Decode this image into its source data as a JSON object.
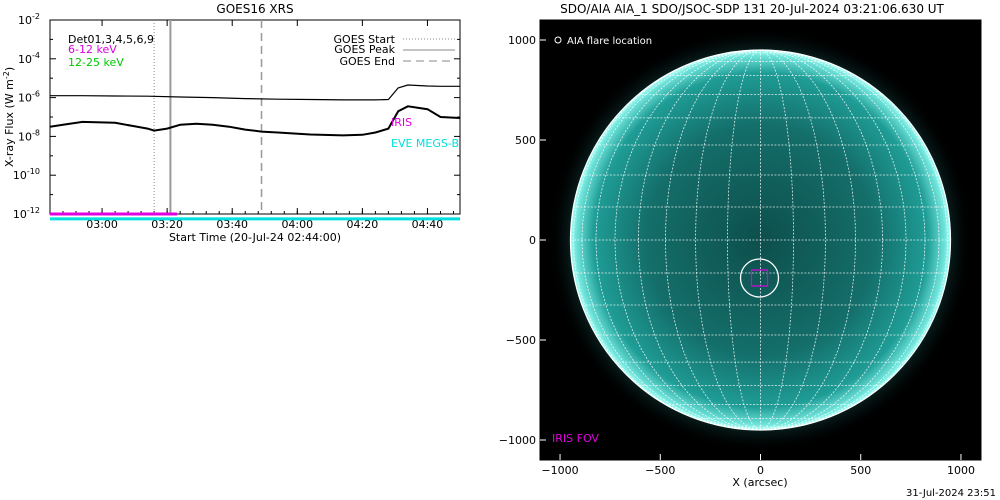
{
  "chart_data": [
    {
      "type": "line",
      "title": "GOES16 XRS",
      "xlabel": "Start Time (20-Jul-24 02:44:00)",
      "ylabel": "X-ray Flux (W m",
      "ylabel_sup": "-2",
      "ylabel_close": ")",
      "y_scale": "log",
      "ylim_exp": [
        -12,
        -2
      ],
      "y_ticks": [
        {
          "base": "10",
          "exp": "-12",
          "value_exp": -12
        },
        {
          "base": "10",
          "exp": "-10",
          "value_exp": -10
        },
        {
          "base": "10",
          "exp": "-8",
          "value_exp": -8
        },
        {
          "base": "10",
          "exp": "-6",
          "value_exp": -6
        },
        {
          "base": "10",
          "exp": "-4",
          "value_exp": -4
        },
        {
          "base": "10",
          "exp": "-2",
          "value_exp": -2
        }
      ],
      "xlim_min": [
        0,
        126
      ],
      "x_ticks": [
        {
          "label": "03:00",
          "min": 16
        },
        {
          "label": "03:20",
          "min": 36
        },
        {
          "label": "03:40",
          "min": 56
        },
        {
          "label": "04:00",
          "min": 76
        },
        {
          "label": "04:20",
          "min": 96
        },
        {
          "label": "04:40",
          "min": 116
        }
      ],
      "legend_left": [
        {
          "text": "Det01,3,4,5,6,9",
          "color": "#000000"
        },
        {
          "text": "6-12 keV",
          "color": "#e000e0"
        },
        {
          "text": "12-25 keV",
          "color": "#00c800"
        }
      ],
      "legend_right": [
        {
          "text": "GOES Start",
          "style": "dotted",
          "color": "#888888"
        },
        {
          "text": "GOES Peak",
          "style": "solid",
          "color": "#888888"
        },
        {
          "text": "GOES End",
          "style": "dashed",
          "color": "#888888"
        }
      ],
      "events": [
        {
          "name": "GOES Start",
          "min": 32,
          "style": "dotted"
        },
        {
          "name": "GOES Peak",
          "min": 37,
          "style": "solid"
        },
        {
          "name": "GOES End",
          "min": 65,
          "style": "dashed"
        }
      ],
      "annotations": [
        {
          "text": "IRIS",
          "color": "#e000e0"
        },
        {
          "text": "EVE MEGS-B",
          "color": "#00e0e0"
        }
      ],
      "series": [
        {
          "color": "#000000",
          "x": [
            0,
            10,
            20,
            30,
            40,
            50,
            60,
            70,
            80,
            90,
            100,
            104,
            107,
            110,
            116,
            120,
            126
          ],
          "y_exp": [
            -5.9,
            -5.9,
            -5.92,
            -5.93,
            -5.97,
            -6.0,
            -6.05,
            -6.08,
            -6.1,
            -6.12,
            -6.12,
            -6.1,
            -5.5,
            -5.35,
            -5.4,
            -5.42,
            -5.42
          ]
        },
        {
          "color": "#000000",
          "x": [
            0,
            4,
            10,
            20,
            30,
            32,
            36,
            40,
            45,
            50,
            55,
            60,
            65,
            70,
            80,
            90,
            96,
            100,
            104,
            107,
            110,
            116,
            120,
            126
          ],
          "y_exp": [
            -7.5,
            -7.4,
            -7.25,
            -7.3,
            -7.6,
            -7.7,
            -7.6,
            -7.4,
            -7.35,
            -7.4,
            -7.5,
            -7.65,
            -7.75,
            -7.8,
            -7.9,
            -7.95,
            -7.92,
            -7.8,
            -7.6,
            -6.7,
            -6.45,
            -6.6,
            -7.0,
            -7.05
          ]
        }
      ],
      "bars": [
        {
          "color": "#e000e0",
          "x": [
            0,
            39
          ],
          "y_exp": -12.0
        },
        {
          "color": "#00e0e0",
          "x": [
            0,
            126
          ],
          "y_exp": -12.25
        }
      ]
    },
    {
      "type": "scatter",
      "title": "SDO/AIA AIA_1 SDO/JSOC-SDP 131 20-Jul-2024 03:21:06.630 UT",
      "xlabel": "X (arcsec)",
      "xlim": [
        -1100,
        1100
      ],
      "ylim": [
        -1100,
        1100
      ],
      "x_ticks": [
        -1000,
        -500,
        0,
        500,
        1000
      ],
      "y_ticks": [
        1000,
        500,
        0,
        -500,
        -1000
      ],
      "x_tick_labels": [
        "−1000",
        "−500",
        "0",
        "500",
        "1000"
      ],
      "y_tick_labels": [
        "1000",
        "500",
        "0",
        "−500",
        "−1000"
      ],
      "solar_radius_arcsec": 948,
      "flare_location": {
        "x": -5,
        "y": -190
      },
      "iris_fov": {
        "x": -5,
        "y": -190,
        "w": 80,
        "h": 80
      },
      "legend": [
        {
          "text": "AIA flare location",
          "color": "#ffffff",
          "symbol": "circle"
        }
      ],
      "labels": [
        {
          "text": "IRIS FOV",
          "color": "#e000e0"
        }
      ],
      "colors": {
        "disk": "#1a8a84",
        "limb": "#7fe8e0",
        "background": "#000000",
        "grid": "#ffffff"
      }
    }
  ],
  "footer": {
    "timestamp": "31-Jul-2024 23:51"
  }
}
